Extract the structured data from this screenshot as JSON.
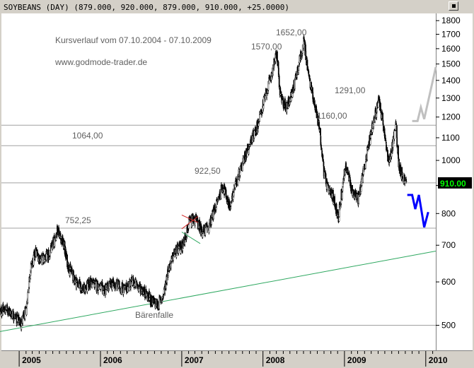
{
  "window": {
    "title": "SOYBEANS (DAY) (879.000, 920.000, 879.000, 910.000, +25.0000)",
    "close_icon": "close-icon"
  },
  "chart_data": {
    "type": "candlestick",
    "scale": "log",
    "ylim": [
      450,
      1850
    ],
    "xlim": [
      "2004-10-07",
      "2010-02-15"
    ],
    "y_ticks": [
      500,
      600,
      700,
      800,
      900,
      1000,
      1100,
      1200,
      1300,
      1400,
      1500,
      1600,
      1700,
      1800
    ],
    "x_ticks": [
      "2005",
      "2006",
      "2007",
      "2008",
      "2009",
      "2010"
    ],
    "last_price_label": "910.00",
    "last_price": 910,
    "annotations": [
      {
        "text": "Kursverlauf vom 07.10.2004 - 07.10.2009"
      },
      {
        "text": "www.godmode-trader.de"
      },
      {
        "text": "1652,00",
        "value": 1652
      },
      {
        "text": "1570,00",
        "value": 1570
      },
      {
        "text": "1291,00",
        "value": 1291
      },
      {
        "text": "1160,00",
        "value": 1160
      },
      {
        "text": "1064,00",
        "value": 1064
      },
      {
        "text": "922,50",
        "value": 922.5
      },
      {
        "text": "752,25",
        "value": 752.25
      },
      {
        "text": "Bärenfalle"
      }
    ],
    "horizontal_lines": [
      1160,
      1064,
      910,
      752.25,
      500
    ],
    "trendline": [
      {
        "x": "2004-10-07",
        "y": 487
      },
      {
        "x": "2010-02-15",
        "y": 683
      }
    ],
    "price_path": [
      {
        "x": "2004-10-07",
        "y": 530
      },
      {
        "x": "2004-11-10",
        "y": 535
      },
      {
        "x": "2004-12-10",
        "y": 520
      },
      {
        "x": "2005-01-10",
        "y": 505
      },
      {
        "x": "2005-02-01",
        "y": 530
      },
      {
        "x": "2005-02-20",
        "y": 630
      },
      {
        "x": "2005-03-15",
        "y": 680
      },
      {
        "x": "2005-04-10",
        "y": 660
      },
      {
        "x": "2005-05-15",
        "y": 670
      },
      {
        "x": "2005-06-10",
        "y": 720
      },
      {
        "x": "2005-06-24",
        "y": 752
      },
      {
        "x": "2005-07-20",
        "y": 700
      },
      {
        "x": "2005-08-10",
        "y": 640
      },
      {
        "x": "2005-09-15",
        "y": 600
      },
      {
        "x": "2005-10-20",
        "y": 580
      },
      {
        "x": "2005-11-20",
        "y": 600
      },
      {
        "x": "2005-12-20",
        "y": 590
      },
      {
        "x": "2006-01-20",
        "y": 580
      },
      {
        "x": "2006-02-20",
        "y": 595
      },
      {
        "x": "2006-03-20",
        "y": 590
      },
      {
        "x": "2006-04-20",
        "y": 580
      },
      {
        "x": "2006-05-20",
        "y": 600
      },
      {
        "x": "2006-06-20",
        "y": 590
      },
      {
        "x": "2006-07-20",
        "y": 575
      },
      {
        "x": "2006-08-15",
        "y": 555
      },
      {
        "x": "2006-09-15",
        "y": 545
      },
      {
        "x": "2006-10-10",
        "y": 565
      },
      {
        "x": "2006-11-01",
        "y": 630
      },
      {
        "x": "2006-12-01",
        "y": 680
      },
      {
        "x": "2007-01-05",
        "y": 700
      },
      {
        "x": "2007-02-05",
        "y": 770
      },
      {
        "x": "2007-03-05",
        "y": 780
      },
      {
        "x": "2007-04-05",
        "y": 740
      },
      {
        "x": "2007-05-05",
        "y": 760
      },
      {
        "x": "2007-06-05",
        "y": 830
      },
      {
        "x": "2007-07-05",
        "y": 900
      },
      {
        "x": "2007-08-05",
        "y": 820
      },
      {
        "x": "2007-09-05",
        "y": 920
      },
      {
        "x": "2007-10-05",
        "y": 1000
      },
      {
        "x": "2007-11-05",
        "y": 1080
      },
      {
        "x": "2007-12-05",
        "y": 1150
      },
      {
        "x": "2008-01-05",
        "y": 1280
      },
      {
        "x": "2008-02-01",
        "y": 1400
      },
      {
        "x": "2008-03-03",
        "y": 1570
      },
      {
        "x": "2008-03-20",
        "y": 1300
      },
      {
        "x": "2008-04-15",
        "y": 1250
      },
      {
        "x": "2008-05-10",
        "y": 1320
      },
      {
        "x": "2008-06-10",
        "y": 1500
      },
      {
        "x": "2008-07-03",
        "y": 1652
      },
      {
        "x": "2008-07-25",
        "y": 1420
      },
      {
        "x": "2008-08-15",
        "y": 1300
      },
      {
        "x": "2008-09-10",
        "y": 1150
      },
      {
        "x": "2008-10-01",
        "y": 950
      },
      {
        "x": "2008-10-20",
        "y": 880
      },
      {
        "x": "2008-11-10",
        "y": 860
      },
      {
        "x": "2008-12-05",
        "y": 790
      },
      {
        "x": "2009-01-05",
        "y": 980
      },
      {
        "x": "2009-02-05",
        "y": 880
      },
      {
        "x": "2009-03-05",
        "y": 850
      },
      {
        "x": "2009-04-05",
        "y": 1000
      },
      {
        "x": "2009-05-05",
        "y": 1150
      },
      {
        "x": "2009-06-05",
        "y": 1291
      },
      {
        "x": "2009-06-25",
        "y": 1150
      },
      {
        "x": "2009-07-20",
        "y": 980
      },
      {
        "x": "2009-08-10",
        "y": 1100
      },
      {
        "x": "2009-08-20",
        "y": 1160
      },
      {
        "x": "2009-09-01",
        "y": 990
      },
      {
        "x": "2009-09-20",
        "y": 930
      },
      {
        "x": "2009-10-07",
        "y": 910
      }
    ],
    "scenario_blue": [
      {
        "x": "2009-10-10",
        "y": 865
      },
      {
        "x": "2009-11-01",
        "y": 865
      },
      {
        "x": "2009-11-15",
        "y": 815
      },
      {
        "x": "2009-12-01",
        "y": 865
      },
      {
        "x": "2009-12-25",
        "y": 755
      },
      {
        "x": "2010-01-12",
        "y": 805
      }
    ],
    "scenario_gray": [
      {
        "x": "2009-11-01",
        "y": 1180
      },
      {
        "x": "2009-11-25",
        "y": 1180
      },
      {
        "x": "2009-12-10",
        "y": 1250
      },
      {
        "x": "2009-12-25",
        "y": 1190
      },
      {
        "x": "2010-02-15",
        "y": 1480
      }
    ],
    "pattern_red": [
      {
        "x": "2007-01-01",
        "y": 795
      },
      {
        "x": "2007-03-15",
        "y": 770
      },
      {
        "x": "2007-01-01",
        "y": 750
      },
      {
        "x": "2007-03-15",
        "y": 790
      }
    ],
    "pattern_green": [
      {
        "x": "2007-01-01",
        "y": 740
      },
      {
        "x": "2007-03-25",
        "y": 705
      }
    ],
    "colors": {
      "background": "#ffffff",
      "frame": "#d4d0c8",
      "candles": "#000000",
      "horizontal_lines": "#a0a0a0",
      "trendline": "#2ea860",
      "scenario_blue": "#0000ff",
      "scenario_gray": "#c0c0c0",
      "pattern_red": "#d02020",
      "pattern_green": "#2ea860",
      "last_price_bg": "#000000",
      "last_price_fg": "#00ff00"
    }
  }
}
